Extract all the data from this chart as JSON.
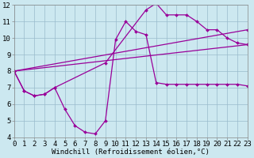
{
  "xlabel": "Windchill (Refroidissement éolien,°C)",
  "xlim": [
    0,
    23
  ],
  "ylim": [
    4,
    12
  ],
  "xticks": [
    0,
    1,
    2,
    3,
    4,
    5,
    6,
    7,
    8,
    9,
    10,
    11,
    12,
    13,
    14,
    15,
    16,
    17,
    18,
    19,
    20,
    21,
    22,
    23
  ],
  "yticks": [
    4,
    5,
    6,
    7,
    8,
    9,
    10,
    11,
    12
  ],
  "bg_color": "#cce8f0",
  "line_color": "#990099",
  "grid_color": "#99bbcc",
  "line1_x": [
    0,
    1,
    2,
    3,
    4,
    5,
    6,
    7,
    8,
    9,
    10,
    11,
    12,
    13,
    14,
    15,
    16,
    17,
    18,
    19,
    20,
    21,
    22,
    23
  ],
  "line1_y": [
    8.0,
    6.8,
    6.5,
    6.6,
    7.0,
    5.7,
    4.7,
    4.3,
    4.2,
    5.0,
    9.9,
    11.0,
    10.4,
    10.2,
    7.3,
    7.2,
    7.2,
    7.2,
    7.2,
    7.2,
    7.2,
    7.2,
    7.2,
    7.1
  ],
  "line2_x": [
    0,
    1,
    2,
    3,
    4,
    9,
    13,
    14,
    15,
    16,
    17,
    18,
    19,
    20,
    21,
    22,
    23
  ],
  "line2_y": [
    8.0,
    6.8,
    6.5,
    6.6,
    7.0,
    8.5,
    11.7,
    12.1,
    11.4,
    11.4,
    11.4,
    11.0,
    10.5,
    10.5,
    10.0,
    9.7,
    9.6
  ],
  "line3_x": [
    0,
    23
  ],
  "line3_y": [
    8.0,
    10.5
  ],
  "line4_x": [
    0,
    23
  ],
  "line4_y": [
    8.0,
    9.6
  ],
  "font_family": "monospace",
  "tick_fontsize": 6.5,
  "label_fontsize": 6.5
}
